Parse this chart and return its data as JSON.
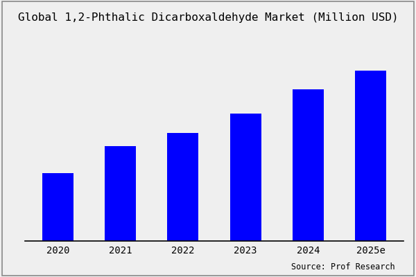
{
  "title": "Global 1,2-Phthalic Dicarboxaldehyde Market (Million USD)",
  "categories": [
    "2020",
    "2021",
    "2022",
    "2023",
    "2024",
    "2025e"
  ],
  "values": [
    25,
    35,
    40,
    47,
    56,
    63
  ],
  "bar_color": "#0000FF",
  "background_color": "#efefef",
  "source_text": "Source: Prof Research",
  "title_fontsize": 11.5,
  "tick_fontsize": 10,
  "source_fontsize": 8.5
}
